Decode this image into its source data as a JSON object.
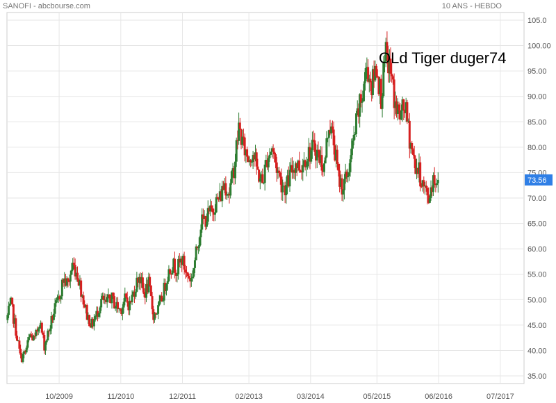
{
  "header": {
    "title": "SANOFI - abcbourse.com",
    "period": "10 ANS - HEBDO"
  },
  "watermark": "OLd Tiger duger74",
  "last_price": {
    "label": "73.56",
    "value": 73.56,
    "color": "#2f7fe6"
  },
  "colors": {
    "up": "#2e7d32",
    "down": "#d62020",
    "grid": "#e6e6e6"
  },
  "chart_data": {
    "type": "candlestick",
    "title": "SANOFI - abcbourse.com",
    "subtitle": "10 ANS - HEBDO",
    "xlabel": "",
    "ylabel": "",
    "grid": true,
    "ylim": [
      33.5,
      106.5
    ],
    "yticks": [
      "35.00",
      "40.00",
      "45.00",
      "50.00",
      "55.00",
      "60.00",
      "65.00",
      "70.00",
      "75.00",
      "80.00",
      "85.00",
      "90.00",
      "95.00",
      "100.00",
      "105.0"
    ],
    "xticks": [
      "10/2009",
      "11/2010",
      "12/2011",
      "02/2013",
      "03/2014",
      "05/2015",
      "06/2016",
      "07/2017"
    ],
    "xlim": [
      "2008-11",
      "2017-12"
    ],
    "series": [
      {
        "name": "SANOFI",
        "close_points": [
          [
            "2008-11",
            46
          ],
          [
            "2008-12",
            49
          ],
          [
            "2009-01",
            44
          ],
          [
            "2009-02",
            38.5
          ],
          [
            "2009-03",
            39.5
          ],
          [
            "2009-04",
            43
          ],
          [
            "2009-05",
            42
          ],
          [
            "2009-06",
            46
          ],
          [
            "2009-07",
            41
          ],
          [
            "2009-08",
            44
          ],
          [
            "2009-09",
            47.5
          ],
          [
            "2009-10",
            50
          ],
          [
            "2009-11",
            54
          ],
          [
            "2009-12",
            53
          ],
          [
            "2010-01",
            57
          ],
          [
            "2010-02",
            55
          ],
          [
            "2010-03",
            51
          ],
          [
            "2010-04",
            47
          ],
          [
            "2010-05",
            45
          ],
          [
            "2010-06",
            47
          ],
          [
            "2010-07",
            50
          ],
          [
            "2010-08",
            49
          ],
          [
            "2010-09",
            50.5
          ],
          [
            "2010-10",
            49
          ],
          [
            "2010-11",
            48
          ],
          [
            "2010-12",
            50
          ],
          [
            "2011-01",
            49
          ],
          [
            "2011-02",
            52
          ],
          [
            "2011-03",
            55
          ],
          [
            "2011-04",
            51
          ],
          [
            "2011-05",
            53
          ],
          [
            "2011-06",
            47
          ],
          [
            "2011-07",
            48
          ],
          [
            "2011-08",
            51
          ],
          [
            "2011-09",
            55
          ],
          [
            "2011-10",
            57
          ],
          [
            "2011-11",
            56
          ],
          [
            "2011-12",
            58
          ],
          [
            "2012-01",
            55
          ],
          [
            "2012-02",
            54
          ],
          [
            "2012-03",
            59
          ],
          [
            "2012-04",
            65
          ],
          [
            "2012-05",
            66
          ],
          [
            "2012-06",
            67
          ],
          [
            "2012-07",
            69
          ],
          [
            "2012-08",
            70
          ],
          [
            "2012-09",
            73
          ],
          [
            "2012-10",
            71
          ],
          [
            "2012-11",
            76
          ],
          [
            "2012-12",
            84
          ],
          [
            "2013-01",
            80
          ],
          [
            "2013-02",
            78
          ],
          [
            "2013-03",
            79
          ],
          [
            "2013-04",
            75
          ],
          [
            "2013-05",
            73
          ],
          [
            "2013-06",
            78
          ],
          [
            "2013-07",
            80
          ],
          [
            "2013-08",
            76
          ],
          [
            "2013-09",
            73
          ],
          [
            "2013-10",
            72
          ],
          [
            "2013-11",
            75
          ],
          [
            "2013-12",
            77
          ],
          [
            "2014-01",
            76
          ],
          [
            "2014-02",
            78
          ],
          [
            "2014-03",
            79
          ],
          [
            "2014-04",
            80
          ],
          [
            "2014-05",
            78
          ],
          [
            "2014-06",
            76
          ],
          [
            "2014-07",
            85
          ],
          [
            "2014-08",
            81
          ],
          [
            "2014-09",
            74
          ],
          [
            "2014-10",
            72
          ],
          [
            "2014-11",
            75
          ],
          [
            "2014-12",
            80
          ],
          [
            "2015-01",
            86
          ],
          [
            "2015-02",
            90
          ],
          [
            "2015-03",
            96
          ],
          [
            "2015-04",
            92
          ],
          [
            "2015-05",
            96
          ],
          [
            "2015-06",
            90
          ],
          [
            "2015-07",
            98
          ],
          [
            "2015-08",
            95
          ],
          [
            "2015-09",
            88
          ],
          [
            "2015-10",
            86
          ],
          [
            "2015-11",
            88
          ],
          [
            "2015-12",
            82
          ],
          [
            "2016-01",
            77
          ],
          [
            "2016-02",
            75
          ],
          [
            "2016-03",
            72
          ],
          [
            "2016-04",
            70
          ],
          [
            "2016-05",
            74
          ],
          [
            "2016-06",
            73.56
          ]
        ]
      }
    ]
  }
}
